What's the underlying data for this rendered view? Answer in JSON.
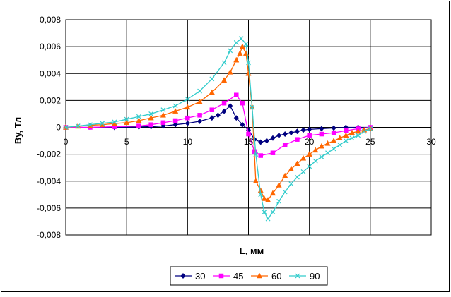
{
  "chart_data": {
    "type": "line",
    "title": "",
    "xlabel": "L, мм",
    "ylabel": "By, Тл",
    "xlim": [
      0,
      30
    ],
    "ylim": [
      -0.008,
      0.008
    ],
    "x_ticks": [
      "0",
      "5",
      "10",
      "15",
      "20",
      "25",
      "30"
    ],
    "y_ticks": [
      "0,008",
      "0,006",
      "0,004",
      "0,002",
      "0",
      "-0,002",
      "-0,004",
      "-0,006",
      "-0,008"
    ],
    "grid": true,
    "legend_position": "bottom",
    "series": [
      {
        "name": "30",
        "color": "#000080",
        "marker": "diamond",
        "points": [
          [
            0,
            0
          ],
          [
            2,
            0
          ],
          [
            4,
            0
          ],
          [
            6,
            3e-05
          ],
          [
            7,
            5e-05
          ],
          [
            8,
            0.0001
          ],
          [
            9,
            0.0002
          ],
          [
            10,
            0.0003
          ],
          [
            11,
            0.00045
          ],
          [
            12,
            0.0007
          ],
          [
            12.5,
            0.0009
          ],
          [
            13,
            0.0012
          ],
          [
            13.5,
            0.0016
          ],
          [
            14,
            0.0007
          ],
          [
            14.5,
            0.0002
          ],
          [
            15,
            -0.0002
          ],
          [
            15.5,
            -0.0009
          ],
          [
            16,
            -0.0011
          ],
          [
            16.5,
            -0.001
          ],
          [
            17,
            -0.0008
          ],
          [
            17.5,
            -0.0006
          ],
          [
            18,
            -0.0005
          ],
          [
            18.5,
            -0.0004
          ],
          [
            19,
            -0.0003
          ],
          [
            19.5,
            -0.0002
          ],
          [
            20,
            -0.00015
          ],
          [
            21,
            -0.0001
          ],
          [
            22,
            -5e-05
          ],
          [
            23,
            0
          ],
          [
            24,
            0
          ],
          [
            25,
            0
          ]
        ]
      },
      {
        "name": "45",
        "color": "#ff00ff",
        "marker": "square",
        "points": [
          [
            0,
            0
          ],
          [
            2,
            0
          ],
          [
            4,
            5e-05
          ],
          [
            6,
            0.0001
          ],
          [
            7,
            0.0002
          ],
          [
            8,
            0.00035
          ],
          [
            9,
            0.0005
          ],
          [
            10,
            0.0007
          ],
          [
            11,
            0.0009
          ],
          [
            12,
            0.0013
          ],
          [
            13,
            0.0018
          ],
          [
            14,
            0.0024
          ],
          [
            14.5,
            0.0018
          ],
          [
            15,
            -0.0005
          ],
          [
            15.5,
            -0.0018
          ],
          [
            16,
            -0.0021
          ],
          [
            17,
            -0.0019
          ],
          [
            18,
            -0.0013
          ],
          [
            19,
            -0.0009
          ],
          [
            20,
            -0.0006
          ],
          [
            21,
            -0.0005
          ],
          [
            22,
            -0.0004
          ],
          [
            23,
            -0.00025
          ],
          [
            24,
            -0.0001
          ],
          [
            25,
            0
          ]
        ]
      },
      {
        "name": "60",
        "color": "#ff6600",
        "marker": "triangle",
        "points": [
          [
            0,
            0
          ],
          [
            1,
            8e-05
          ],
          [
            2,
            0.00015
          ],
          [
            3,
            0.0002
          ],
          [
            4,
            0.00028
          ],
          [
            5,
            0.00035
          ],
          [
            6,
            0.0005
          ],
          [
            7,
            0.0007
          ],
          [
            8,
            0.0009
          ],
          [
            9,
            0.0012
          ],
          [
            10,
            0.0015
          ],
          [
            11,
            0.0019
          ],
          [
            12,
            0.0026
          ],
          [
            13,
            0.0035
          ],
          [
            13.5,
            0.0041
          ],
          [
            14,
            0.005
          ],
          [
            14.3,
            0.0055
          ],
          [
            14.5,
            0.006
          ],
          [
            14.8,
            0.0055
          ],
          [
            15,
            0.004
          ],
          [
            15.3,
            0.0015
          ],
          [
            15.6,
            -0.004
          ],
          [
            16,
            -0.0047
          ],
          [
            16.3,
            -0.0053
          ],
          [
            16.6,
            -0.0054
          ],
          [
            17,
            -0.0049
          ],
          [
            17.5,
            -0.0043
          ],
          [
            18,
            -0.0036
          ],
          [
            18.5,
            -0.0031
          ],
          [
            19,
            -0.0027
          ],
          [
            19.5,
            -0.0023
          ],
          [
            20,
            -0.002
          ],
          [
            20.5,
            -0.0017
          ],
          [
            21,
            -0.0014
          ],
          [
            21.5,
            -0.0012
          ],
          [
            22,
            -0.001
          ],
          [
            22.5,
            -0.0008
          ],
          [
            23,
            -0.0006
          ],
          [
            23.5,
            -0.0004
          ],
          [
            24,
            -0.0003
          ],
          [
            24.5,
            -0.0002
          ],
          [
            25,
            -0.0001
          ]
        ]
      },
      {
        "name": "90",
        "color": "#33cccc",
        "marker": "x",
        "points": [
          [
            0,
            0
          ],
          [
            1,
            0.0001
          ],
          [
            2,
            0.0002
          ],
          [
            3,
            0.0003
          ],
          [
            4,
            0.0004
          ],
          [
            5,
            0.0006
          ],
          [
            6,
            0.0008
          ],
          [
            7,
            0.001
          ],
          [
            8,
            0.0013
          ],
          [
            9,
            0.0016
          ],
          [
            10,
            0.0021
          ],
          [
            11,
            0.0027
          ],
          [
            12,
            0.0036
          ],
          [
            13,
            0.0048
          ],
          [
            13.5,
            0.0057
          ],
          [
            14,
            0.0063
          ],
          [
            14.4,
            0.0066
          ],
          [
            14.8,
            0.0062
          ],
          [
            15,
            0.0048
          ],
          [
            15.3,
            0.0015
          ],
          [
            15.6,
            -0.002
          ],
          [
            16,
            -0.005
          ],
          [
            16.3,
            -0.0063
          ],
          [
            16.6,
            -0.0068
          ],
          [
            17,
            -0.0063
          ],
          [
            17.5,
            -0.0055
          ],
          [
            18,
            -0.0048
          ],
          [
            18.5,
            -0.0042
          ],
          [
            19,
            -0.0037
          ],
          [
            19.5,
            -0.0033
          ],
          [
            20,
            -0.0029
          ],
          [
            20.5,
            -0.0025
          ],
          [
            21,
            -0.0022
          ],
          [
            21.5,
            -0.0019
          ],
          [
            22,
            -0.0016
          ],
          [
            22.5,
            -0.0013
          ],
          [
            23,
            -0.001
          ],
          [
            23.5,
            -0.0008
          ],
          [
            24,
            -0.0006
          ],
          [
            24.5,
            -0.0003
          ],
          [
            25,
            -0.0001
          ]
        ]
      }
    ]
  }
}
